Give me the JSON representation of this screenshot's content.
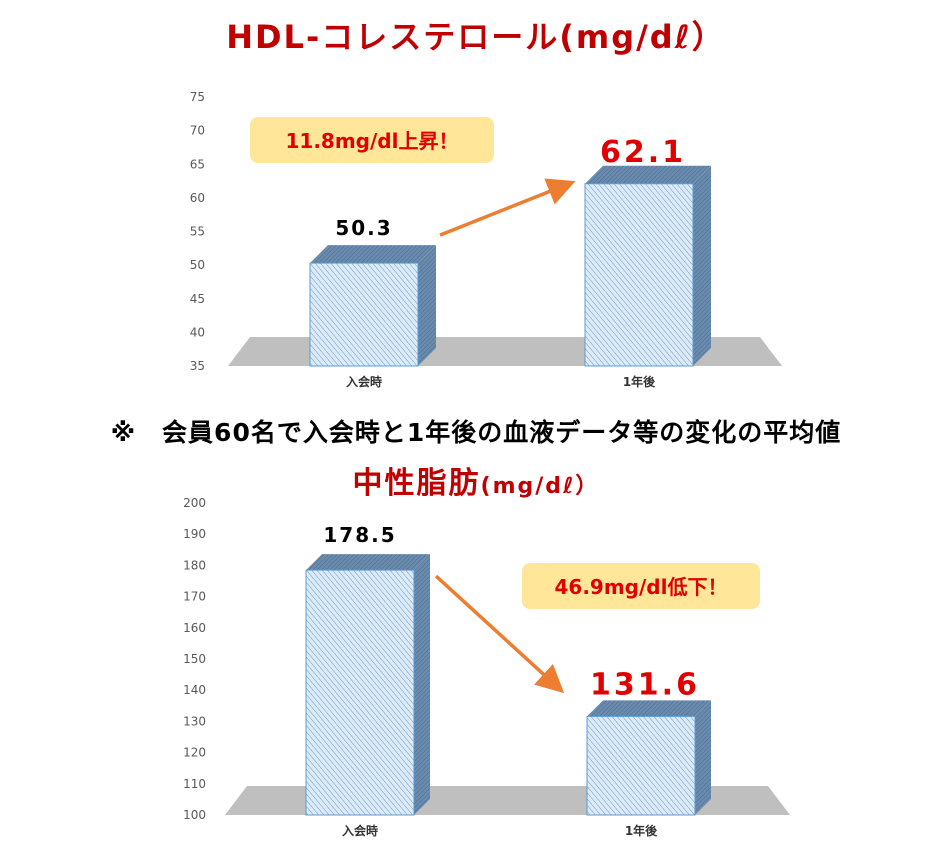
{
  "note": "※　会員60名で入会時と1年後の血液データ等の変化の平均値",
  "colors": {
    "title": "#c00000",
    "value_red": "#e00000",
    "arrow": "#ed7d31",
    "callout_bg": "#ffe699",
    "bar_face": "#deebf7",
    "bar_hatch": "#5b9bd5",
    "bar_top": "#4a6f94",
    "floor": "#bfbfbf"
  },
  "chart_data": [
    {
      "type": "bar",
      "title": "HDL-コレステロール(mg/dℓ）",
      "categories": [
        "入会時",
        "1年後"
      ],
      "values": [
        50.3,
        62.1
      ],
      "value_labels": [
        "50.3",
        "62.1"
      ],
      "yticks": [
        "35",
        "40",
        "45",
        "50",
        "55",
        "60",
        "65",
        "70",
        "75"
      ],
      "ylim": [
        35,
        75
      ],
      "callout": "11.8mg/dl上昇！",
      "change": "increase",
      "grid": false,
      "legend": "none"
    },
    {
      "type": "bar",
      "title": "中性脂肪",
      "title_unit": "(mg/dℓ）",
      "categories": [
        "入会時",
        "1年後"
      ],
      "values": [
        178.5,
        131.6
      ],
      "value_labels": [
        "178.5",
        "131.6"
      ],
      "yticks": [
        "100",
        "110",
        "120",
        "130",
        "140",
        "150",
        "160",
        "170",
        "180",
        "190",
        "200"
      ],
      "ylim": [
        100,
        200
      ],
      "callout": "46.9mg/dl低下！",
      "change": "decrease",
      "grid": false,
      "legend": "none"
    }
  ]
}
